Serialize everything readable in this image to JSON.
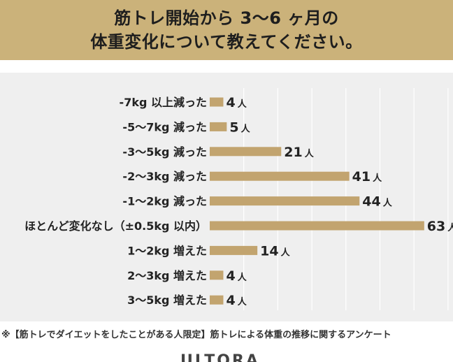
{
  "header": {
    "title_line1": "筋トレ開始から 3〜6 ヶ月の",
    "title_line2": "体重変化について教えてください。"
  },
  "footnote": "※【筋トレでダイエットをしたことがある人限定】筋トレによる体重の推移に関するアンケート",
  "logo": {
    "text": "ULTORA"
  },
  "colors": {
    "accent": "#cbb27a",
    "bar": "#c2a46f",
    "panel": "#efefef",
    "grid": "#ffffff"
  },
  "chart_data": {
    "type": "bar",
    "orientation": "horizontal",
    "categories": [
      "-7kg 以上減った",
      "-5〜7kg 減った",
      "-3〜5kg 減った",
      "-2〜3kg 減った",
      "-1〜2kg 減った",
      "ほとんど変化なし（±0.5kg 以内）",
      "1〜2kg 増えた",
      "2〜3kg 増えた",
      "3〜5kg 増えた"
    ],
    "values": [
      4,
      5,
      21,
      41,
      44,
      63,
      14,
      4,
      4
    ],
    "unit": "人",
    "xlim": [
      0,
      70
    ],
    "grid": true
  }
}
